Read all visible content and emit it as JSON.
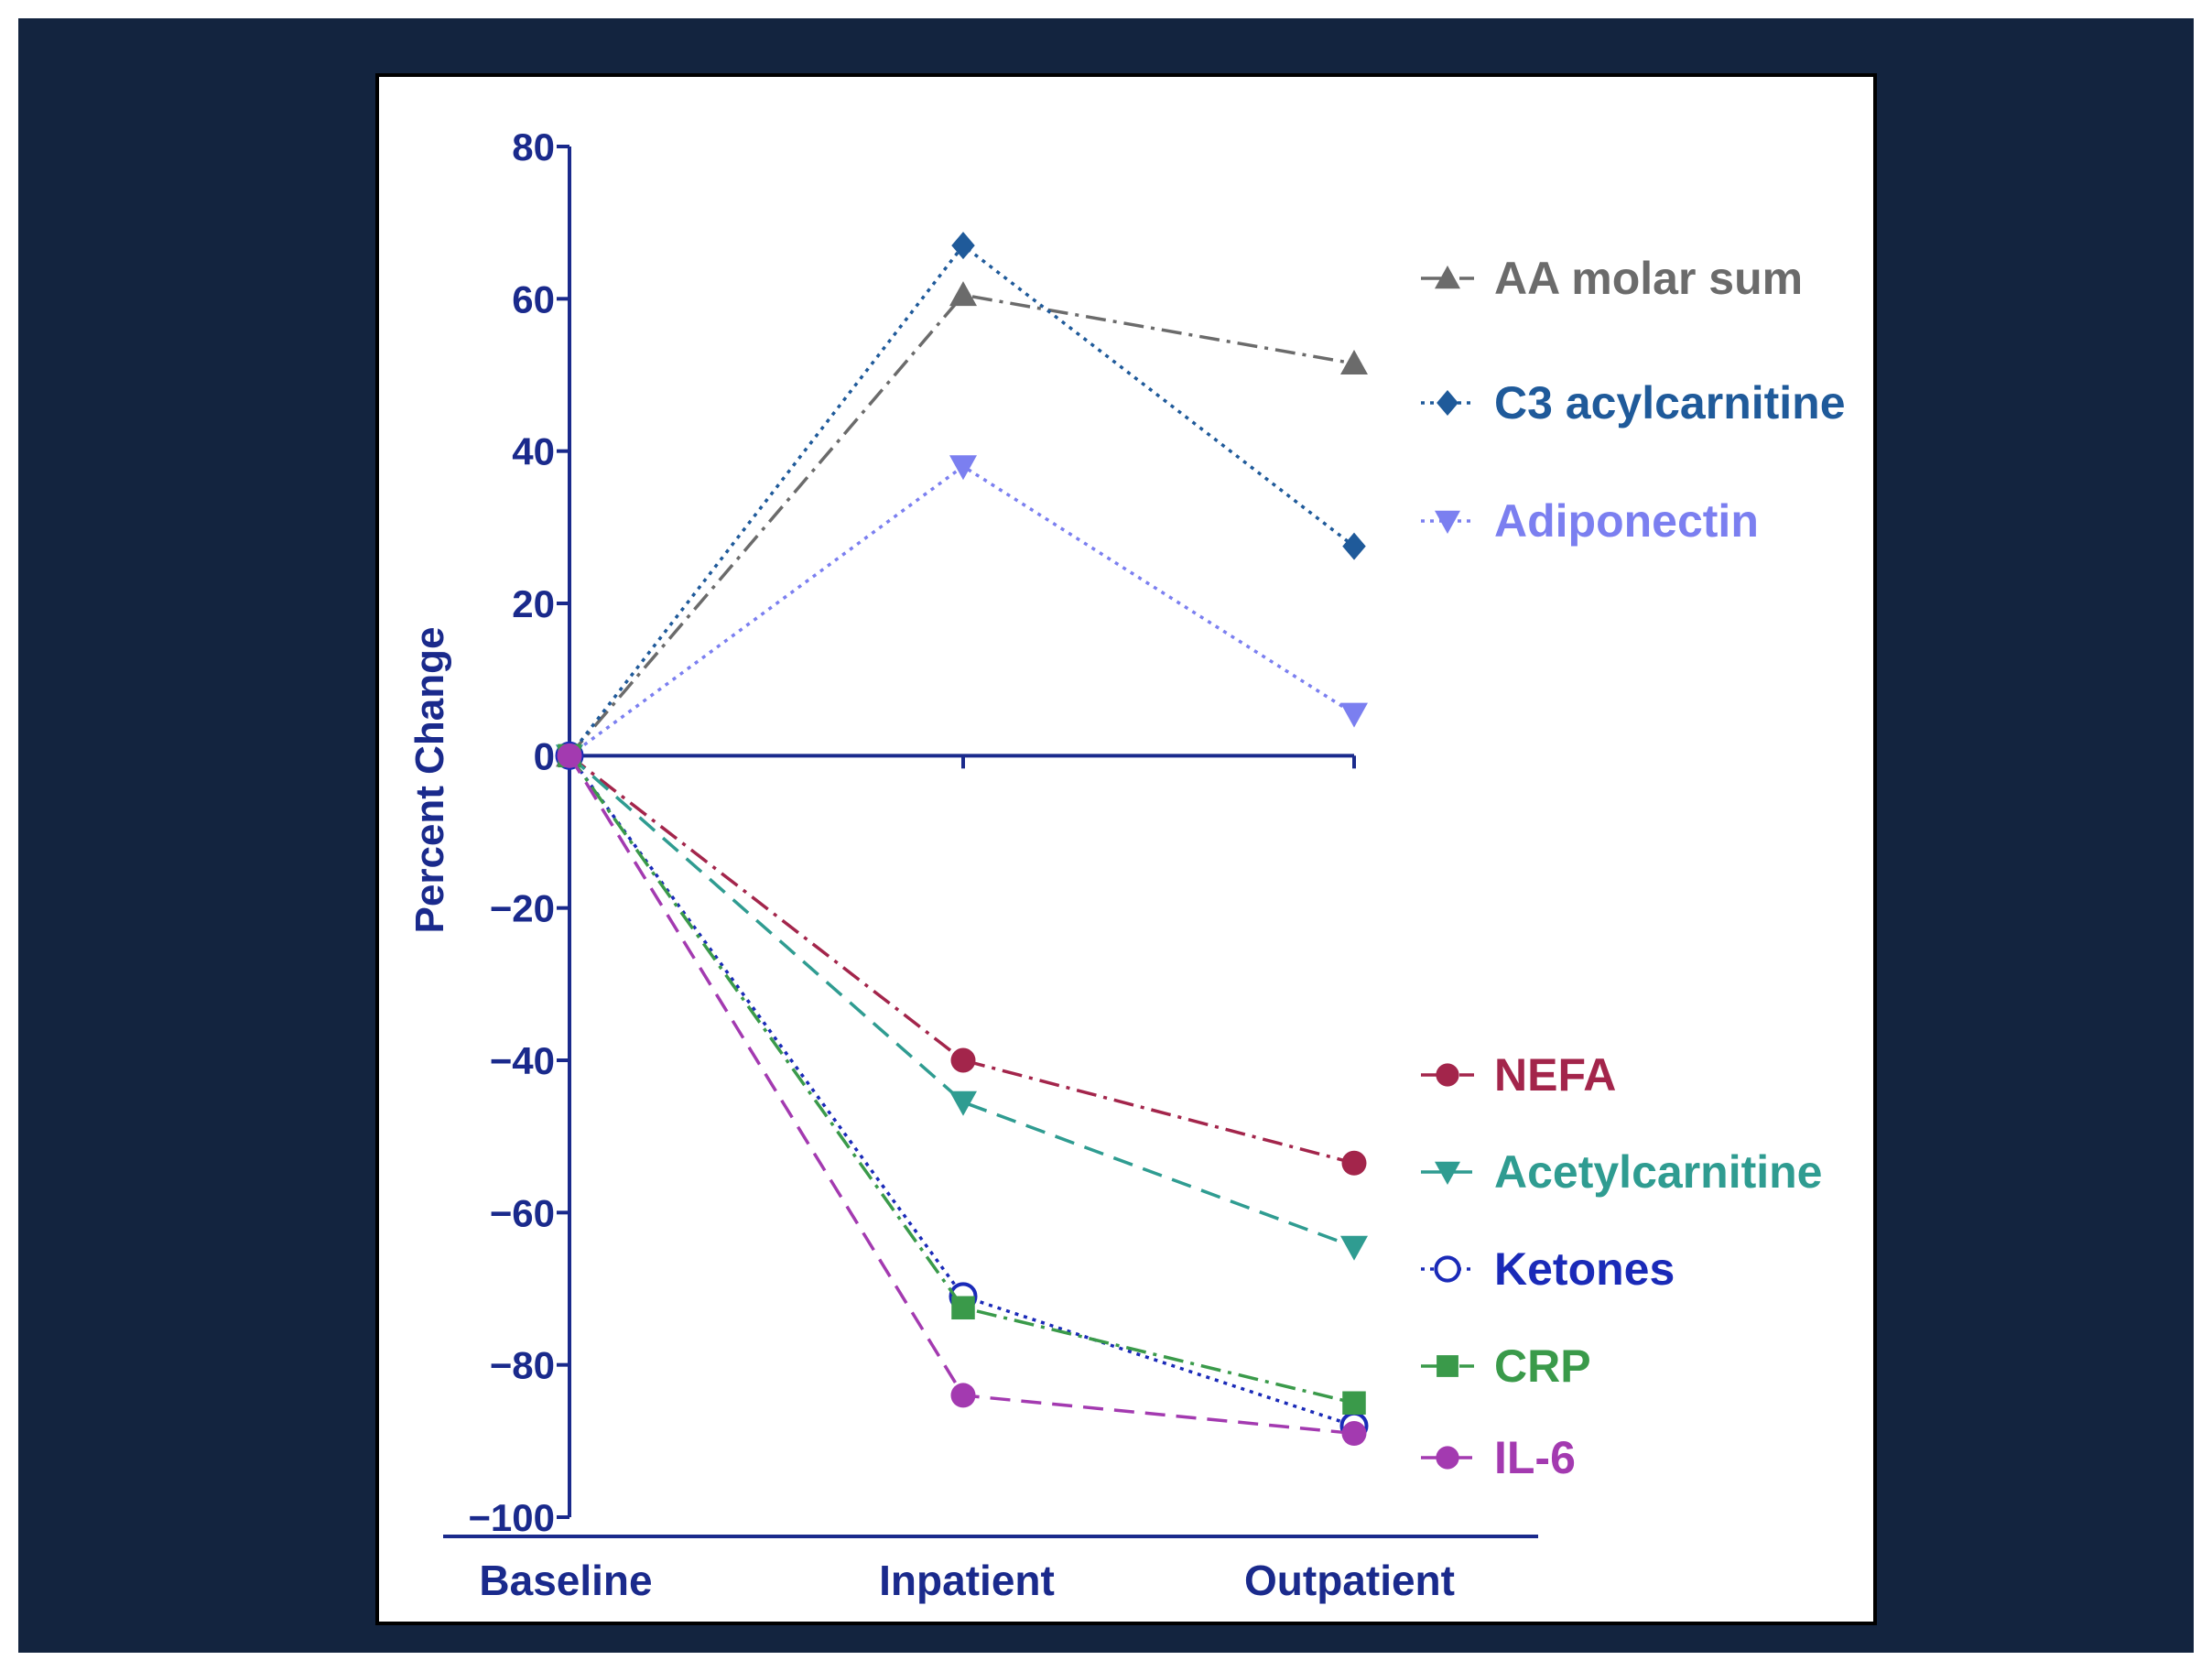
{
  "chart_data": {
    "type": "line",
    "ylabel": "Percent Change",
    "ylim": [
      -100,
      80
    ],
    "yticks": [
      80,
      60,
      40,
      20,
      0,
      -20,
      -40,
      -60,
      -80,
      -100
    ],
    "categories": [
      "Baseline",
      "Inpatient",
      "Outpatient"
    ],
    "axis_color": "#1a2a8c",
    "grid": false,
    "legend_placement": "right",
    "series": [
      {
        "name": "AA molar sum",
        "values": [
          0,
          60.5,
          51.5
        ],
        "color": "#6b6b6b",
        "marker": "triangle-up",
        "dash": "dash-dot"
      },
      {
        "name": "C3 acylcarnitine",
        "values": [
          0,
          67,
          27.5
        ],
        "color": "#1f5a9a",
        "marker": "diamond",
        "dash": "dotted"
      },
      {
        "name": "Adiponectin",
        "values": [
          0,
          38,
          5.5
        ],
        "color": "#7b7ff0",
        "marker": "triangle-down",
        "dash": "dotted"
      },
      {
        "name": "NEFA",
        "values": [
          0,
          -40,
          -53.5
        ],
        "color": "#a3254b",
        "marker": "circle",
        "dash": "dash-dot"
      },
      {
        "name": "Acetylcarnitine",
        "values": [
          0,
          -45.5,
          -64.5
        ],
        "color": "#2f9c91",
        "marker": "triangle-down",
        "dash": "dashed"
      },
      {
        "name": "Ketones",
        "values": [
          0,
          -71,
          -88
        ],
        "color": "#1a2ab8",
        "marker": "open-circle",
        "dash": "dotted"
      },
      {
        "name": "CRP",
        "values": [
          0,
          -72.5,
          -85
        ],
        "color": "#3a9a4a",
        "marker": "square",
        "dash": "dash-dot"
      },
      {
        "name": "IL-6",
        "values": [
          0,
          -84,
          -89
        ],
        "color": "#a33ab0",
        "marker": "circle",
        "dash": "dashed"
      }
    ],
    "legend_groups": [
      [
        "AA molar sum",
        "C3 acylcarnitine",
        "Adiponectin"
      ],
      [
        "NEFA",
        "Acetylcarnitine",
        "Ketones",
        "CRP",
        "IL-6"
      ]
    ]
  }
}
